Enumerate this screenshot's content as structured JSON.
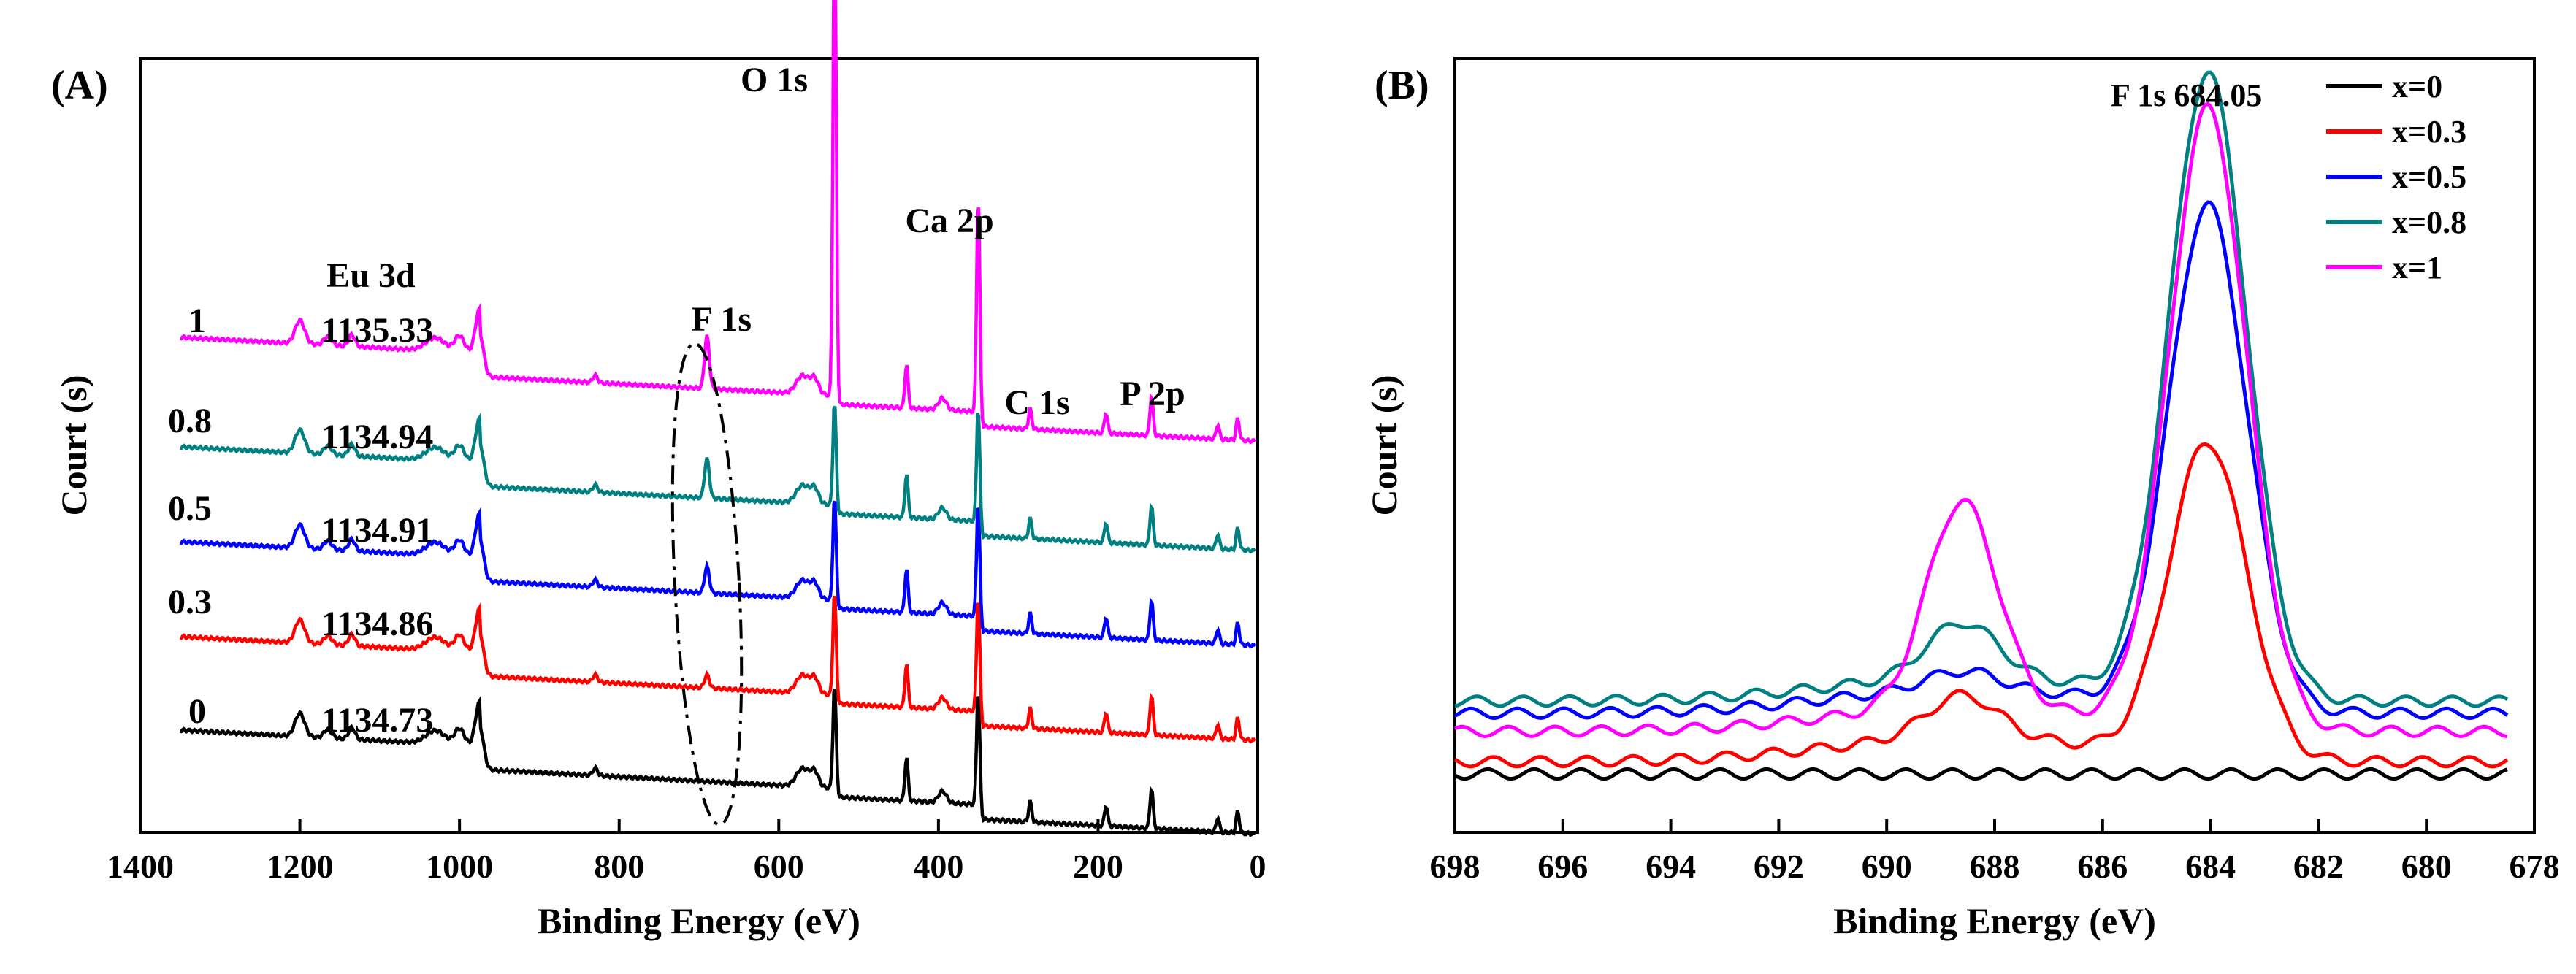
{
  "chart_data": [
    {
      "panel_label": "(A)",
      "type": "line",
      "xlabel": "Binding Energy (eV)",
      "ylabel": "Court (s)",
      "xlim": [
        1400,
        0
      ],
      "x_ticks": [
        "1400",
        "1200",
        "1000",
        "800",
        "600",
        "400",
        "200",
        "0"
      ],
      "series_labels": [
        "0",
        "0.3",
        "0.5",
        "0.8",
        "1"
      ],
      "eu3d_values": [
        "1134.73",
        "1134.86",
        "1134.91",
        "1134.94",
        "1135.33"
      ],
      "peak_labels": [
        "O 1s",
        "Ca 2p",
        "Eu 3d",
        "F 1s",
        "C 1s",
        "P 2p"
      ],
      "series": [
        {
          "name": "0",
          "color": "#000000"
        },
        {
          "name": "0.3",
          "color": "#ff0000"
        },
        {
          "name": "0.5",
          "color": "#0000ff"
        },
        {
          "name": "0.8",
          "color": "#008080"
        },
        {
          "name": "1",
          "color": "#ff00ff"
        }
      ],
      "peaks_eV": [
        1350,
        1200,
        1165,
        1135,
        1030,
        1000,
        975,
        830,
        690,
        570,
        530,
        440,
        395,
        350,
        285,
        190,
        133,
        50,
        25
      ]
    },
    {
      "panel_label": "(B)",
      "type": "line",
      "xlabel": "Binding Energy (eV)",
      "ylabel": "Court (s)",
      "xlim": [
        698,
        678
      ],
      "x_ticks": [
        "698",
        "696",
        "694",
        "692",
        "690",
        "688",
        "686",
        "684",
        "682",
        "680",
        "678"
      ],
      "annotation": "F 1s 684.05",
      "series": [
        {
          "name": "x=0",
          "color": "#000000",
          "main_peak": 0,
          "sat_peak": 0,
          "baseline": 0
        },
        {
          "name": "x=0.3",
          "color": "#ff0000",
          "main_peak": 0.52,
          "sat_peak": 0.07,
          "baseline": 0.02
        },
        {
          "name": "x=0.5",
          "color": "#0000ff",
          "main_peak": 0.83,
          "sat_peak": 0.03,
          "baseline": 0.1
        },
        {
          "name": "x=0.8",
          "color": "#008080",
          "main_peak": 1.03,
          "sat_peak": 0.09,
          "baseline": 0.12
        },
        {
          "name": "x=1",
          "color": "#ff00ff",
          "main_peak": 1.02,
          "sat_peak": 0.34,
          "baseline": 0.07
        }
      ]
    }
  ]
}
